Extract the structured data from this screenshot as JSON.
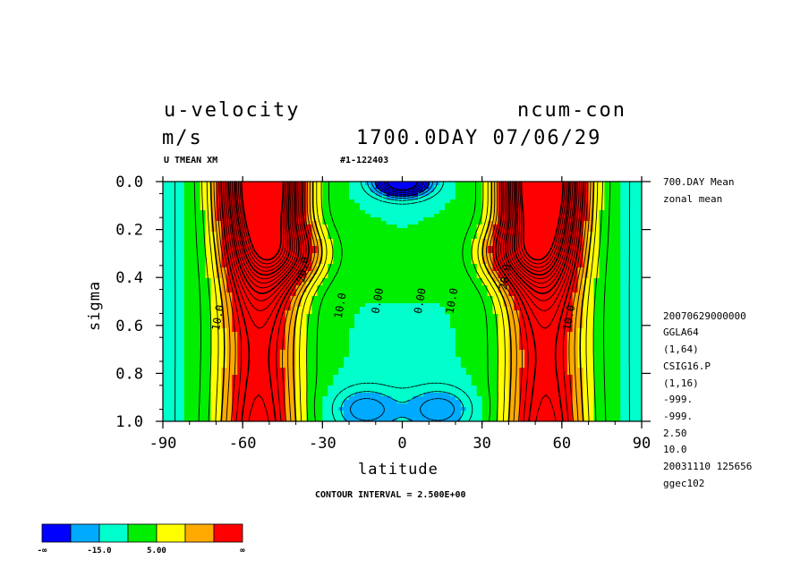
{
  "header": {
    "title_left": "u-velocity",
    "unit": "m/s",
    "title_right": "ncum-con",
    "date_line": "1700.0DAY 07/06/29",
    "var_label": "U TMEAN XM",
    "run_id": "#1-122403"
  },
  "side_info": {
    "top": [
      "700.DAY Mean",
      "zonal mean"
    ],
    "bottom": [
      "20070629000000",
      "GGLA64",
      "(1,64)",
      "CSIG16.P",
      "(1,16)",
      "-999.",
      "-999.",
      "2.50",
      "10.0",
      "20031110 125656",
      "ggec102"
    ]
  },
  "chart_data": {
    "type": "contour",
    "xlabel": "latitude",
    "ylabel": "sigma",
    "xlim": [
      -90,
      90
    ],
    "ylim": [
      1.0,
      0.0
    ],
    "x_ticks": [
      "-90",
      "-60",
      "-30",
      "0",
      "30",
      "60",
      "90"
    ],
    "y_ticks": [
      "0.0",
      "0.2",
      "0.4",
      "0.6",
      "0.8",
      "1.0"
    ],
    "contour_interval_text": "CONTOUR INTERVAL = 2.500E+00",
    "contour_labels": [
      {
        "text": "20.0",
        "lat": -36,
        "sigma": 0.37
      },
      {
        "text": "10.0",
        "lat": -22,
        "sigma": 0.52
      },
      {
        "text": "0.00",
        "lat": -8,
        "sigma": 0.5
      },
      {
        "text": "0.00",
        "lat": 8,
        "sigma": 0.5
      },
      {
        "text": "10.0",
        "lat": 20,
        "sigma": 0.5
      },
      {
        "text": "20.0",
        "lat": 40,
        "sigma": 0.4
      },
      {
        "text": "10.0",
        "lat": -68,
        "sigma": 0.57
      },
      {
        "text": "10.0",
        "lat": 64,
        "sigma": 0.57
      }
    ],
    "field_model": {
      "jets": [
        {
          "lat": -52,
          "sigma": 0.02,
          "amp": 46,
          "width_lat": 13,
          "width_sigma": 0.36
        },
        {
          "lat": 52,
          "sigma": 0.02,
          "amp": 46,
          "width_lat": 13,
          "width_sigma": 0.36
        },
        {
          "lat": -42,
          "sigma": 0.3,
          "amp": 14,
          "width_lat": 14,
          "width_sigma": 0.12
        },
        {
          "lat": 42,
          "sigma": 0.3,
          "amp": 14,
          "width_lat": 14,
          "width_sigma": 0.12
        },
        {
          "lat": 0,
          "sigma": 0.0,
          "amp": -28,
          "width_lat": 10,
          "width_sigma": 0.06
        },
        {
          "lat": -14,
          "sigma": 0.95,
          "amp": -9,
          "width_lat": 12,
          "width_sigma": 0.09
        },
        {
          "lat": 14,
          "sigma": 0.95,
          "amp": -9,
          "width_lat": 12,
          "width_sigma": 0.09
        }
      ],
      "tower_amp": 24,
      "tower_center": 54,
      "tower_width": 15
    },
    "colorbar": {
      "colors": [
        "#0000ff",
        "#00aaff",
        "#00ffcc",
        "#00ee00",
        "#ffff00",
        "#ffaa00",
        "#ff0000"
      ],
      "levels": [
        -15,
        -10,
        -5,
        0,
        5,
        10,
        15
      ],
      "labels": [
        "-∞",
        "-15.0",
        "5.00",
        "∞"
      ]
    }
  }
}
